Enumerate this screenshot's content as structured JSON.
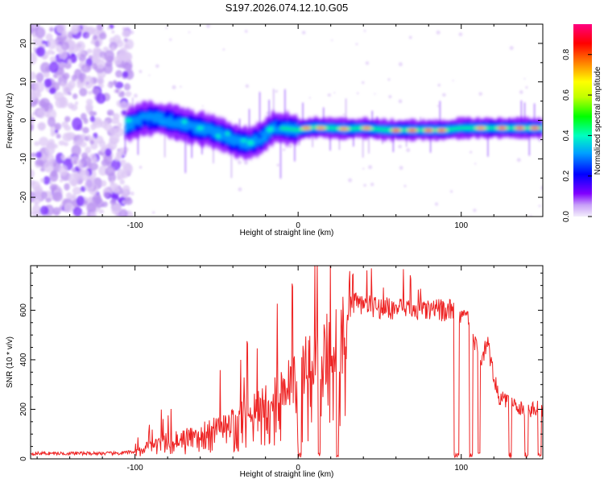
{
  "title": "S197.2026.074.12.10.G05",
  "chart_data": [
    {
      "type": "heatmap",
      "name": "spectrogram",
      "xlabel": "Height of straight line (km)",
      "ylabel": "Frequency (Hz)",
      "xlim": [
        -164,
        150
      ],
      "ylim": [
        -25,
        25
      ],
      "xticks": [
        -100,
        0,
        100
      ],
      "yticks": [
        -20,
        -10,
        0,
        10,
        20
      ],
      "colorbar": {
        "label": "Normalized spectral amplitude",
        "range": [
          0,
          0.95
        ],
        "ticks": [
          0.0,
          0.2,
          0.4,
          0.6,
          0.8
        ],
        "colormap": [
          "#e8d8f8",
          "#8000ff",
          "#0000ff",
          "#00c8ff",
          "#00ff80",
          "#80ff00",
          "#ffff00",
          "#ff8000",
          "#ff0000",
          "#ff0080"
        ]
      },
      "noise_region_x": [
        -164,
        -103
      ],
      "signal_onset_km": -106,
      "ridge": [
        {
          "x": -106,
          "f": -1.5
        },
        {
          "x": -95,
          "f": 0.5
        },
        {
          "x": -85,
          "f": 0.5
        },
        {
          "x": -75,
          "f": -0.5
        },
        {
          "x": -65,
          "f": -1.8
        },
        {
          "x": -55,
          "f": -2.5
        },
        {
          "x": -45,
          "f": -4.0
        },
        {
          "x": -38,
          "f": -5.5
        },
        {
          "x": -30,
          "f": -6.0
        },
        {
          "x": -22,
          "f": -4.5
        },
        {
          "x": -15,
          "f": -1.8
        },
        {
          "x": 0,
          "f": -2.5
        },
        {
          "x": 10,
          "f": -1.8
        },
        {
          "x": 20,
          "f": -2.0
        },
        {
          "x": 30,
          "f": -2.2
        },
        {
          "x": 40,
          "f": -2.0
        },
        {
          "x": 55,
          "f": -2.5
        },
        {
          "x": 75,
          "f": -2.5
        },
        {
          "x": 90,
          "f": -2.5
        },
        {
          "x": 100,
          "f": -2.0
        },
        {
          "x": 115,
          "f": -2.0
        },
        {
          "x": 130,
          "f": -2.0
        },
        {
          "x": 148,
          "f": -2.0
        }
      ],
      "hot_spots": [
        {
          "x": 5,
          "f": -2.0,
          "a": 0.85
        },
        {
          "x": 14,
          "f": -2.0,
          "a": 0.8
        },
        {
          "x": 28,
          "f": -2.2,
          "a": 0.85
        },
        {
          "x": 42,
          "f": -2.0,
          "a": 0.8
        },
        {
          "x": 60,
          "f": -2.6,
          "a": 0.92
        },
        {
          "x": 70,
          "f": -2.6,
          "a": 0.92
        },
        {
          "x": 80,
          "f": -2.6,
          "a": 0.92
        },
        {
          "x": 88,
          "f": -2.6,
          "a": 0.9
        },
        {
          "x": 112,
          "f": -2.0,
          "a": 0.85
        },
        {
          "x": 125,
          "f": -2.0,
          "a": 0.88
        },
        {
          "x": 136,
          "f": -2.0,
          "a": 0.88
        },
        {
          "x": 145,
          "f": -2.0,
          "a": 0.88
        }
      ]
    },
    {
      "type": "line",
      "name": "snr",
      "xlabel": "Height of straight line (km)",
      "ylabel": "SNR (10 * v/v)",
      "xlim": [
        -164,
        150
      ],
      "ylim": [
        0,
        780
      ],
      "xticks": [
        -100,
        0,
        100
      ],
      "yticks": [
        0,
        200,
        400,
        600
      ],
      "color": "#ee2222",
      "envelope": [
        {
          "x": -164,
          "y": 22
        },
        {
          "x": -110,
          "y": 22
        },
        {
          "x": -100,
          "y": 30
        },
        {
          "x": -92,
          "y": 60
        },
        {
          "x": -80,
          "y": 90
        },
        {
          "x": -60,
          "y": 120
        },
        {
          "x": -40,
          "y": 170
        },
        {
          "x": -20,
          "y": 260
        },
        {
          "x": 0,
          "y": 380
        },
        {
          "x": 20,
          "y": 520
        },
        {
          "x": 35,
          "y": 630
        },
        {
          "x": 50,
          "y": 610
        },
        {
          "x": 70,
          "y": 600
        },
        {
          "x": 95,
          "y": 600
        },
        {
          "x": 103,
          "y": 590
        },
        {
          "x": 108,
          "y": 480
        },
        {
          "x": 112,
          "y": 390
        },
        {
          "x": 116,
          "y": 470
        },
        {
          "x": 120,
          "y": 330
        },
        {
          "x": 123,
          "y": 250
        },
        {
          "x": 135,
          "y": 200
        },
        {
          "x": 150,
          "y": 200
        }
      ],
      "dropouts": [
        {
          "x": 1,
          "w": 2
        },
        {
          "x": 13,
          "w": 1.5
        },
        {
          "x": 24,
          "w": 1.5
        },
        {
          "x": 97,
          "w": 3
        },
        {
          "x": 106,
          "w": 2
        },
        {
          "x": 111,
          "w": 1.5
        },
        {
          "x": 130,
          "w": 2
        },
        {
          "x": 140,
          "w": 2
        },
        {
          "x": 148,
          "w": 2
        }
      ]
    }
  ]
}
